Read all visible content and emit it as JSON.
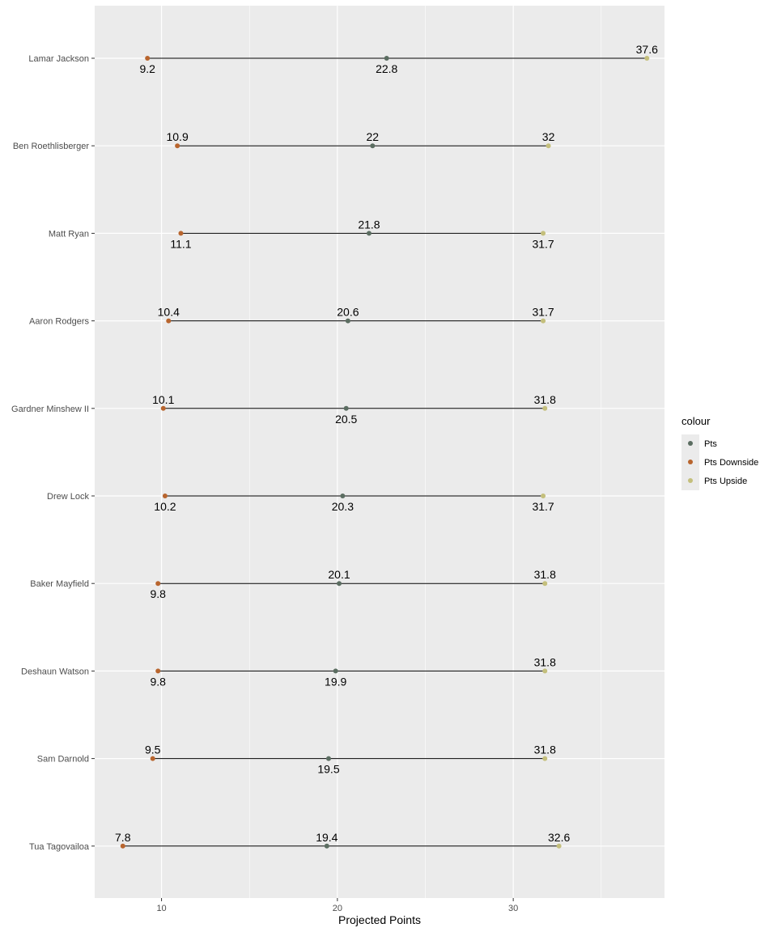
{
  "chart_data": {
    "type": "dumbbell",
    "xlabel": "Projected Points",
    "ylabel": "",
    "xlim": [
      6.2,
      38.6
    ],
    "xticks": [
      10,
      20,
      30
    ],
    "grid": true,
    "legend": {
      "title": "colour",
      "placement": "right",
      "entries": [
        {
          "name": "Pts",
          "color": "#5b6d61"
        },
        {
          "name": "Pts Downside",
          "color": "#b8652e"
        },
        {
          "name": "Pts Upside",
          "color": "#c4bf7c"
        }
      ]
    },
    "categories": [
      "Lamar Jackson",
      "Ben Roethlisberger",
      "Matt Ryan",
      "Aaron Rodgers",
      "Gardner Minshew II",
      "Drew Lock",
      "Baker Mayfield",
      "Deshaun Watson",
      "Sam Darnold",
      "Tua Tagovailoa"
    ],
    "series": [
      {
        "name": "Pts Downside",
        "values": [
          9.2,
          10.9,
          11.1,
          10.4,
          10.1,
          10.2,
          9.8,
          9.8,
          9.5,
          7.8
        ]
      },
      {
        "name": "Pts",
        "values": [
          22.8,
          22,
          21.8,
          20.6,
          20.5,
          20.3,
          20.1,
          19.9,
          19.5,
          19.4
        ]
      },
      {
        "name": "Pts Upside",
        "values": [
          37.6,
          32,
          31.7,
          31.7,
          31.8,
          31.7,
          31.8,
          31.8,
          31.8,
          32.6
        ]
      }
    ],
    "labels": [
      {
        "downside": "9.2",
        "pts": "22.8",
        "upside": "37.6"
      },
      {
        "downside": "10.9",
        "pts": "22",
        "upside": "32"
      },
      {
        "downside": "11.1",
        "pts": "21.8",
        "upside": "31.7"
      },
      {
        "downside": "10.4",
        "pts": "20.6",
        "upside": "31.7"
      },
      {
        "downside": "10.1",
        "pts": "20.5",
        "upside": "31.8"
      },
      {
        "downside": "10.2",
        "pts": "20.3",
        "upside": "31.7"
      },
      {
        "downside": "9.8",
        "pts": "20.1",
        "upside": "31.8"
      },
      {
        "downside": "9.8",
        "pts": "19.9",
        "upside": "31.8"
      },
      {
        "downside": "9.5",
        "pts": "19.5",
        "upside": "31.8"
      },
      {
        "downside": "7.8",
        "pts": "19.4",
        "upside": "32.6"
      }
    ],
    "label_side": [
      {
        "downside": "below",
        "pts": "below",
        "upside": "above"
      },
      {
        "downside": "above",
        "pts": "above",
        "upside": "above"
      },
      {
        "downside": "below",
        "pts": "above",
        "upside": "below"
      },
      {
        "downside": "above",
        "pts": "above",
        "upside": "above"
      },
      {
        "downside": "above",
        "pts": "below",
        "upside": "above"
      },
      {
        "downside": "below",
        "pts": "below",
        "upside": "below"
      },
      {
        "downside": "below",
        "pts": "above",
        "upside": "above"
      },
      {
        "downside": "below",
        "pts": "below",
        "upside": "above"
      },
      {
        "downside": "above",
        "pts": "below",
        "upside": "above"
      },
      {
        "downside": "above",
        "pts": "above",
        "upside": "above"
      }
    ]
  }
}
